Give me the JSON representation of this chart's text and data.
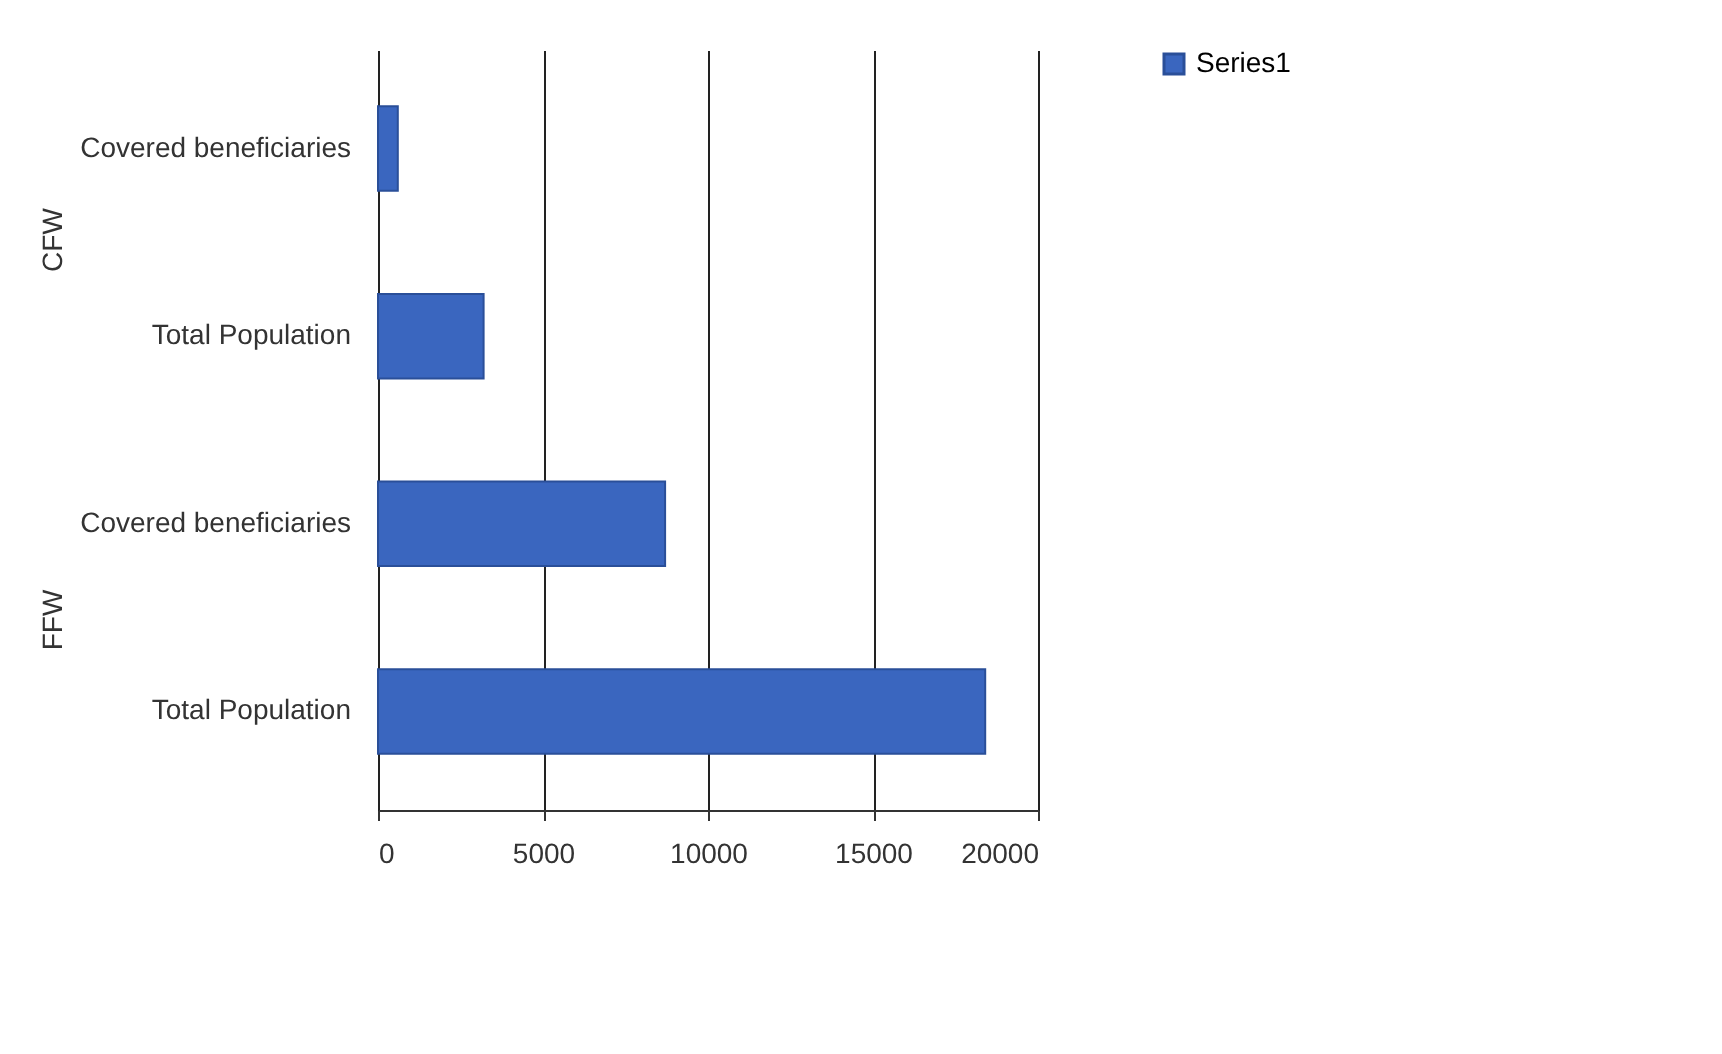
{
  "chart_data": {
    "type": "bar",
    "orientation": "horizontal",
    "categories": [
      "Covered beneficiaries",
      "Total Population",
      "Covered beneficiaries",
      "Total Population"
    ],
    "series": [
      {
        "name": "Series1",
        "color": "#3a66bf",
        "values": [
          600,
          3200,
          8700,
          18400
        ]
      }
    ],
    "xlim": [
      0,
      20000
    ],
    "xticks": [
      0,
      5000,
      10000,
      15000,
      20000
    ],
    "grid": "x",
    "legend": "right",
    "annotations": [
      "CFW",
      "FFW"
    ]
  }
}
